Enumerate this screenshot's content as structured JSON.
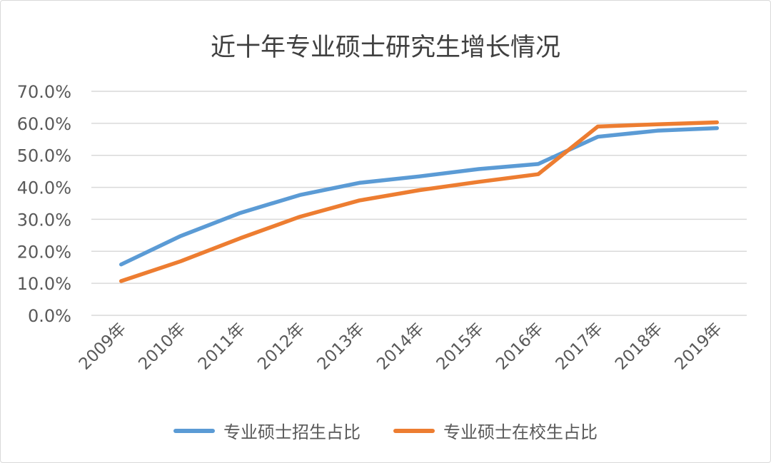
{
  "chart_data": {
    "type": "line",
    "title": "近十年专业硕士研究生增长情况",
    "categories": [
      "2009年",
      "2010年",
      "2011年",
      "2012年",
      "2013年",
      "2014年",
      "2015年",
      "2016年",
      "2017年",
      "2018年",
      "2019年"
    ],
    "y_ticks": [
      "0.0%",
      "10.0%",
      "20.0%",
      "30.0%",
      "40.0%",
      "50.0%",
      "60.0%",
      "70.0%"
    ],
    "ylim": [
      0,
      70
    ],
    "grid": true,
    "legend_position": "bottom",
    "series": [
      {
        "name": "专业硕士招生占比",
        "color": "#5b9bd5",
        "values": [
          15.9,
          24.8,
          32.0,
          37.6,
          41.4,
          43.4,
          45.7,
          47.3,
          55.8,
          57.7,
          58.5
        ]
      },
      {
        "name": "专业硕士在校生占比",
        "color": "#ed7d31",
        "values": [
          10.7,
          16.9,
          24.1,
          30.8,
          35.9,
          39.1,
          41.7,
          44.1,
          59.0,
          59.7,
          60.3
        ]
      }
    ]
  }
}
